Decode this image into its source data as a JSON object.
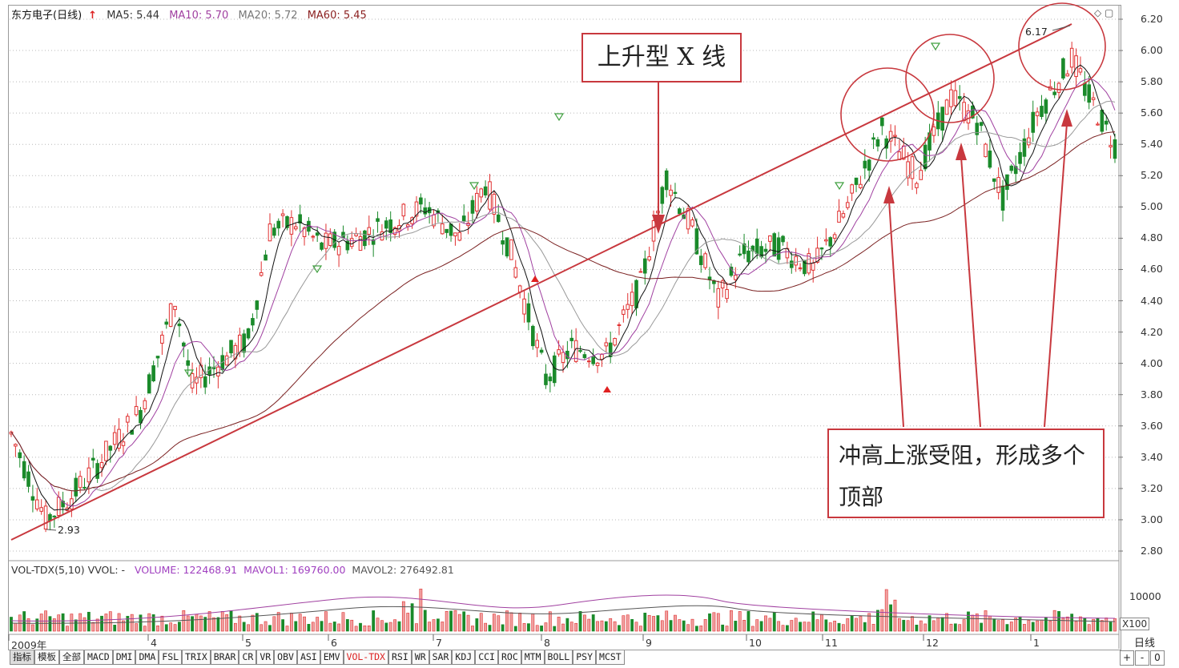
{
  "header": {
    "stock": "东方电子(日线)",
    "ma5": "MA5: 5.44",
    "ma10": "MA10: 5.70",
    "ma20": "MA20: 5.72",
    "ma60": "MA60: 5.45"
  },
  "price_axis": [
    "6.20",
    "6.00",
    "5.80",
    "5.60",
    "5.40",
    "5.20",
    "5.00",
    "4.80",
    "4.60",
    "4.40",
    "4.20",
    "4.00",
    "3.80",
    "3.60",
    "3.40",
    "3.20",
    "3.00",
    "2.80"
  ],
  "low_label": "2.93",
  "high_label": "6.17",
  "annotations": {
    "trendline": "上升型 X 线",
    "tops": "冲高上涨受阻，形成多个顶部"
  },
  "volume": {
    "indicator": "VOL-TDX(5,10)",
    "vvol": "VVOL: -",
    "volume": "VOLUME: 122468.91",
    "mavol1": "MAVOL1: 169760.00",
    "mavol2": "MAVOL2: 276492.81",
    "axis_value": "10000",
    "scale": "X100"
  },
  "x_axis": [
    "2009年",
    "4",
    "5",
    "6",
    "7",
    "8",
    "9",
    "10",
    "11",
    "12",
    "1"
  ],
  "period": "日线",
  "tabs": [
    "指标",
    "模板",
    "全部",
    "MACD",
    "DMI",
    "DMA",
    "FSL",
    "TRIX",
    "BRAR",
    "CR",
    "VR",
    "OBV",
    "ASI",
    "EMV",
    "VOL-TDX",
    "RSI",
    "WR",
    "SAR",
    "KDJ",
    "CCI",
    "ROC",
    "MTM",
    "BOLL",
    "PSY",
    "MCST"
  ],
  "active_tab": "VOL-TDX",
  "bottom_buttons": [
    "+",
    "-",
    "0"
  ],
  "colors": {
    "up": "#e03030",
    "down": "#1a8a2a",
    "ma5": "#111111",
    "ma10": "#a040a0",
    "ma20": "#999999",
    "ma60": "#7a2020",
    "callout": "#c8383e"
  }
}
